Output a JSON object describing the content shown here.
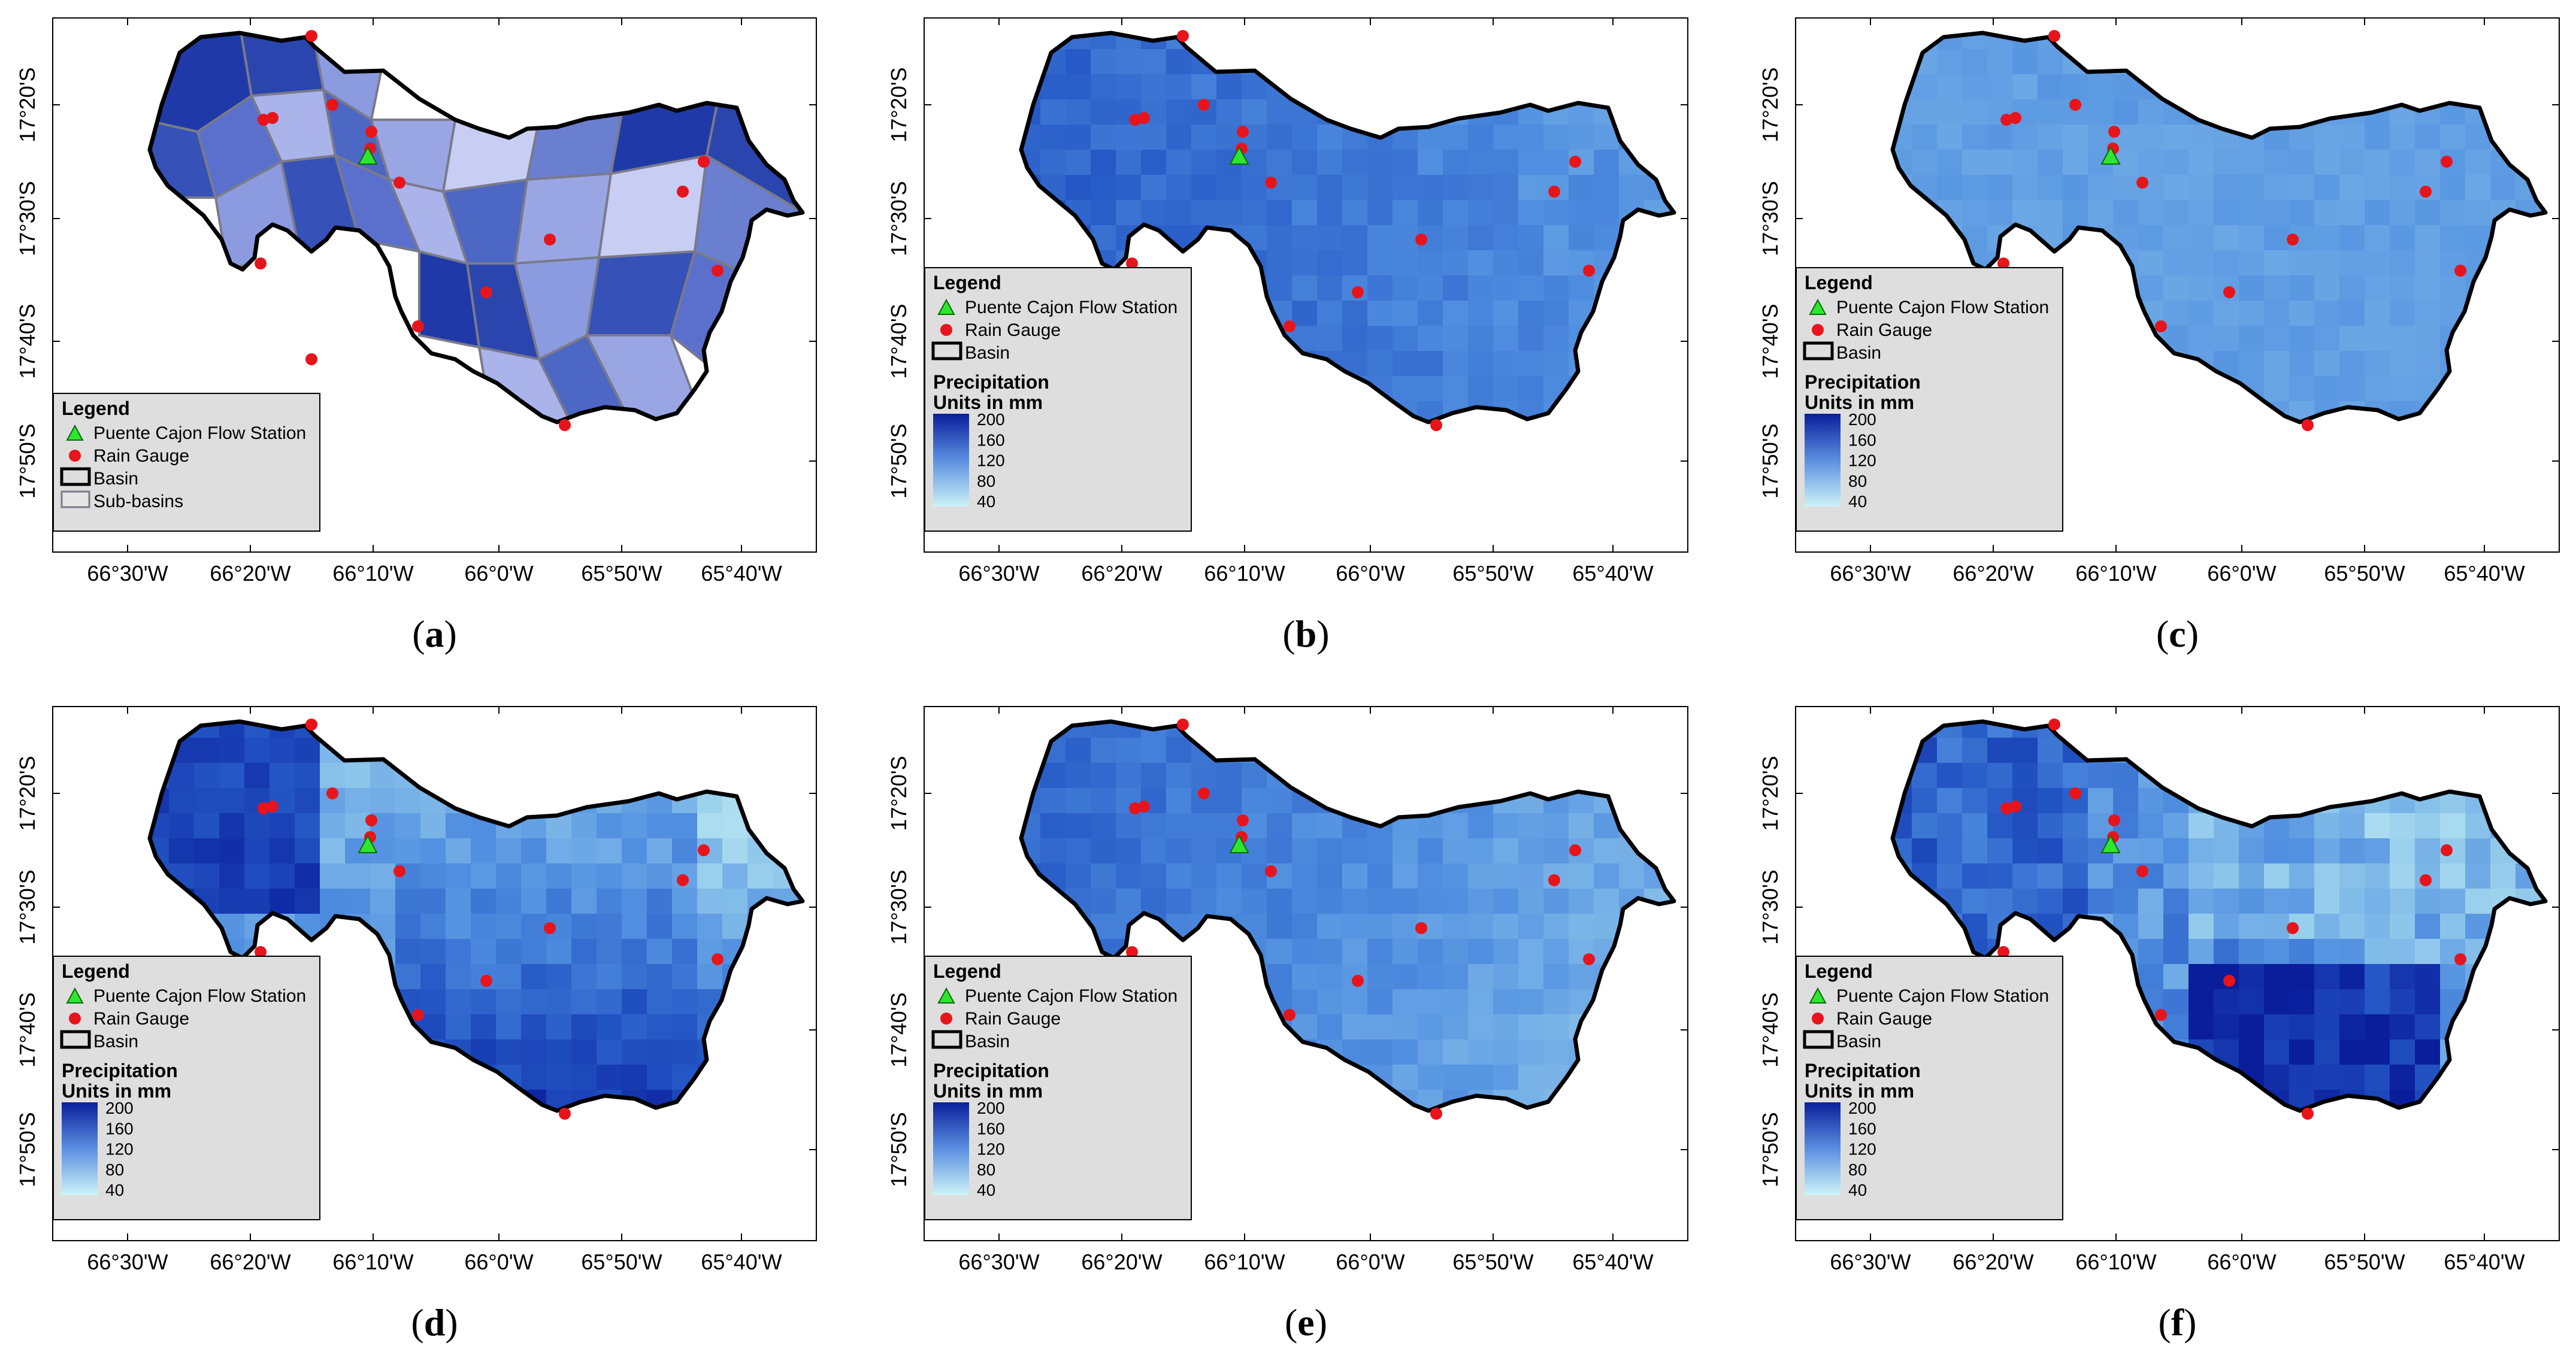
{
  "figure": {
    "x_axis_labels": [
      "66°30'W",
      "66°20'W",
      "66°10'W",
      "66°0'W",
      "65°50'W",
      "65°40'W"
    ],
    "y_axis_labels": [
      "17°20'S",
      "17°30'S",
      "17°40'S",
      "17°50'S"
    ],
    "legend": {
      "title": "Legend",
      "flow_station": "Puente Cajon Flow Station",
      "rain_gauge": "Rain Gauge",
      "basin": "Basin",
      "sub_basins": "Sub-basins",
      "precip_title": "Precipitation",
      "precip_units": "Units in mm",
      "colorbar_ticks": [
        "200",
        "160",
        "120",
        "80",
        "40"
      ],
      "colorbar_range": [
        40,
        200
      ]
    },
    "colors": {
      "basin_outline": "#000000",
      "flow_station": "#2ee62e",
      "rain_gauge": "#e8141c",
      "subbasin_edge": "#7a7a8a",
      "colorbar_high": "#0a1e9c",
      "colorbar_low": "#cdf3f7",
      "legend_bg": "#dedede"
    },
    "panels": [
      {
        "id": "a",
        "caption_prefix": "(",
        "caption_letter": "a",
        "caption_suffix": ")",
        "kind": "sub-basins"
      },
      {
        "id": "b",
        "caption_prefix": "(",
        "caption_letter": "b",
        "caption_suffix": ")",
        "kind": "precipitation",
        "style": "northwest-high"
      },
      {
        "id": "c",
        "caption_prefix": "(",
        "caption_letter": "c",
        "caption_suffix": ")",
        "kind": "precipitation",
        "style": "uniform"
      },
      {
        "id": "d",
        "caption_prefix": "(",
        "caption_letter": "d",
        "caption_suffix": ")",
        "kind": "precipitation",
        "style": "south-high"
      },
      {
        "id": "e",
        "caption_prefix": "(",
        "caption_letter": "e",
        "caption_suffix": ")",
        "kind": "precipitation",
        "style": "west-high"
      },
      {
        "id": "f",
        "caption_prefix": "(",
        "caption_letter": "f",
        "caption_suffix": ")",
        "kind": "precipitation",
        "style": "patchy"
      }
    ]
  }
}
